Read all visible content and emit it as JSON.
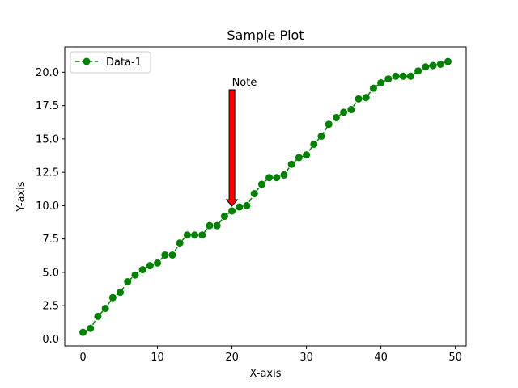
{
  "chart_data": {
    "type": "line",
    "title": "Sample Plot",
    "xlabel": "X-axis",
    "ylabel": "Y-axis",
    "xlim": [
      -2.45,
      51.45
    ],
    "ylim": [
      -0.52,
      21.9
    ],
    "xticks": [
      0,
      10,
      20,
      30,
      40,
      50
    ],
    "xtick_labels": [
      "0",
      "10",
      "20",
      "30",
      "40",
      "50"
    ],
    "yticks": [
      0,
      2.5,
      5,
      7.5,
      10,
      12.5,
      15,
      17.5,
      20
    ],
    "ytick_labels": [
      "0.0",
      "2.5",
      "5.0",
      "7.5",
      "10.0",
      "12.5",
      "15.0",
      "17.5",
      "20.0"
    ],
    "grid": false,
    "legend_position": "upper-left",
    "series": [
      {
        "name": "Data-1",
        "color": "#008000",
        "linestyle": "dashed",
        "marker": "circle",
        "x": [
          0,
          1,
          2,
          3,
          4,
          5,
          6,
          7,
          8,
          9,
          10,
          11,
          12,
          13,
          14,
          15,
          16,
          17,
          18,
          19,
          20,
          21,
          22,
          23,
          24,
          25,
          26,
          27,
          28,
          29,
          30,
          31,
          32,
          33,
          34,
          35,
          36,
          37,
          38,
          39,
          40,
          41,
          42,
          43,
          44,
          45,
          46,
          47,
          48,
          49
        ],
        "y": [
          0.5,
          0.8,
          1.7,
          2.3,
          3.1,
          3.5,
          4.3,
          4.8,
          5.2,
          5.5,
          5.7,
          6.3,
          6.3,
          7.2,
          7.8,
          7.8,
          7.8,
          8.5,
          8.5,
          9.2,
          9.6,
          9.9,
          10.0,
          10.9,
          11.6,
          12.1,
          12.1,
          12.3,
          13.1,
          13.6,
          13.8,
          14.6,
          15.2,
          16.1,
          16.6,
          17.0,
          17.2,
          18.0,
          18.1,
          18.8,
          19.2,
          19.5,
          19.7,
          19.7,
          19.7,
          20.1,
          20.4,
          20.5,
          20.6,
          20.8
        ]
      }
    ],
    "annotations": [
      {
        "text": "Note",
        "x": 20,
        "y": 9.6,
        "arrow_color": "#ff0000"
      }
    ]
  }
}
